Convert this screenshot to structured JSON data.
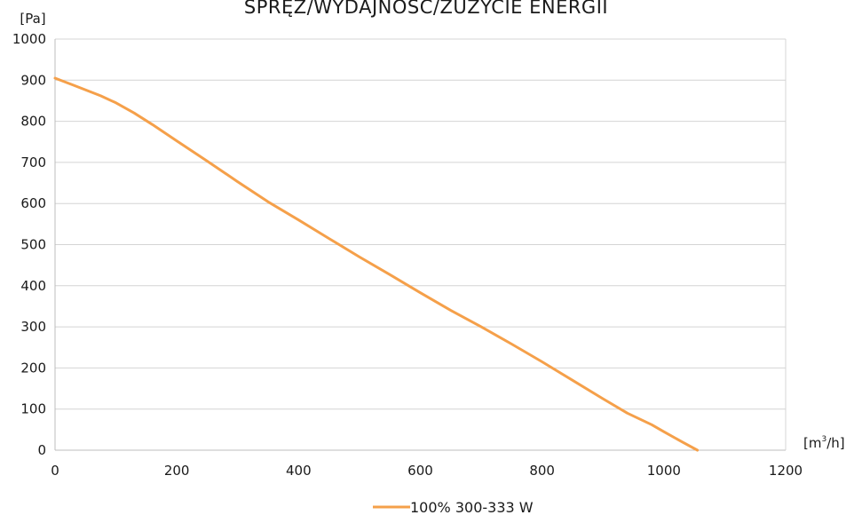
{
  "chart_data": {
    "type": "line",
    "title": "SPRĘŻ/WYDAJNOŚĆ/ZUŻYCIE ENERGII",
    "ylabel": "[Pa]",
    "xlabel_parts": {
      "base": "[m",
      "sup": "3",
      "tail": "/h]"
    },
    "xlim": [
      0,
      1200
    ],
    "ylim": [
      0,
      1000
    ],
    "x_ticks": [
      0,
      200,
      400,
      600,
      800,
      1000,
      1200
    ],
    "y_ticks": [
      0,
      100,
      200,
      300,
      400,
      500,
      600,
      700,
      800,
      900,
      1000
    ],
    "grid": {
      "horizontal": true,
      "vertical": false
    },
    "legend_position": "bottom-center",
    "series": [
      {
        "name": "100% 300-333 W",
        "color": "#f5a04a",
        "x": [
          0,
          30,
          75,
          100,
          130,
          160,
          200,
          250,
          300,
          350,
          400,
          450,
          500,
          550,
          600,
          650,
          700,
          750,
          800,
          850,
          900,
          940,
          980,
          1000,
          1030,
          1055
        ],
        "y": [
          905,
          888,
          862,
          845,
          820,
          792,
          752,
          703,
          653,
          604,
          560,
          515,
          470,
          427,
          383,
          340,
          300,
          258,
          215,
          170,
          125,
          90,
          62,
          45,
          20,
          0
        ]
      }
    ]
  }
}
